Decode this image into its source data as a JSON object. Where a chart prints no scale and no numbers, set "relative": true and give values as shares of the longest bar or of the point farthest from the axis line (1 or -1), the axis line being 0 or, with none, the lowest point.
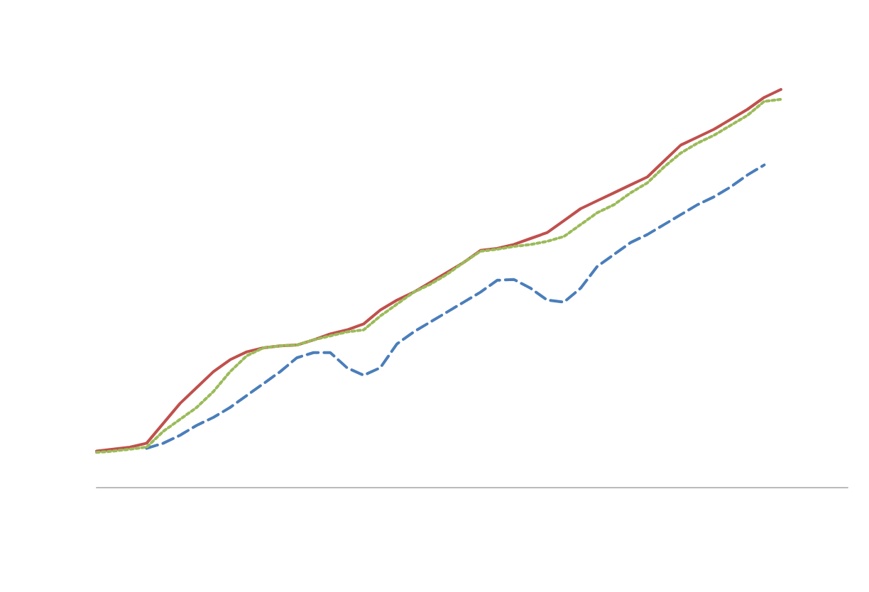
{
  "chart_data": {
    "type": "line",
    "relative": true,
    "categories": [
      null,
      null,
      null,
      null,
      null,
      null,
      null,
      null,
      null,
      null,
      null,
      null,
      null,
      null,
      null,
      null,
      null,
      null,
      null,
      null,
      null,
      null,
      null,
      null,
      null,
      null,
      null,
      null,
      null,
      null,
      null,
      null,
      null,
      null,
      null,
      null,
      null,
      null,
      null,
      null,
      null,
      null,
      null,
      null,
      null,
      null
    ],
    "series": [
      {
        "color": "#4a7ebb",
        "line_style": "dashed",
        "values": [
          null,
          null,
          null,
          0.097,
          0.11,
          0.13,
          0.155,
          0.175,
          0.2,
          0.23,
          0.26,
          0.29,
          0.325,
          0.338,
          0.338,
          0.3,
          0.281,
          0.3,
          0.36,
          0.39,
          0.415,
          0.44,
          0.465,
          0.49,
          0.52,
          0.522,
          0.5,
          0.47,
          0.465,
          0.5,
          0.555,
          0.585,
          0.615,
          0.635,
          0.66,
          0.685,
          0.71,
          0.73,
          0.755,
          0.785,
          0.81,
          null,
          null,
          null,
          null,
          null
        ]
      },
      {
        "color": "#c0504d",
        "line_style": "solid",
        "values": [
          0.09,
          0.095,
          0.1,
          0.11,
          0.16,
          0.21,
          0.25,
          0.29,
          0.32,
          0.34,
          0.35,
          0.355,
          0.357,
          0.37,
          0.385,
          0.395,
          0.41,
          0.445,
          0.47,
          0.49,
          0.515,
          0.54,
          0.565,
          0.595,
          0.6,
          0.61,
          0.625,
          0.64,
          0.67,
          0.7,
          0.72,
          0.74,
          0.76,
          0.78,
          0.82,
          0.86,
          0.88,
          0.9,
          0.925,
          0.95,
          0.98,
          1,
          null,
          null,
          null,
          null
        ]
      },
      {
        "color": "#9bbb59",
        "line_style": "dotted",
        "values": [
          0.087,
          0.09,
          0.095,
          0.1,
          0.14,
          0.17,
          0.2,
          0.24,
          0.29,
          0.33,
          0.35,
          0.355,
          0.357,
          0.37,
          0.38,
          0.39,
          0.395,
          0.43,
          0.46,
          0.49,
          0.51,
          0.535,
          0.565,
          0.593,
          0.598,
          0.605,
          0.61,
          0.618,
          0.63,
          0.66,
          0.69,
          0.71,
          0.74,
          0.765,
          0.805,
          0.84,
          0.865,
          0.885,
          0.91,
          0.935,
          0.97,
          0.975,
          null,
          null,
          null,
          null
        ]
      }
    ],
    "grid": false
  }
}
